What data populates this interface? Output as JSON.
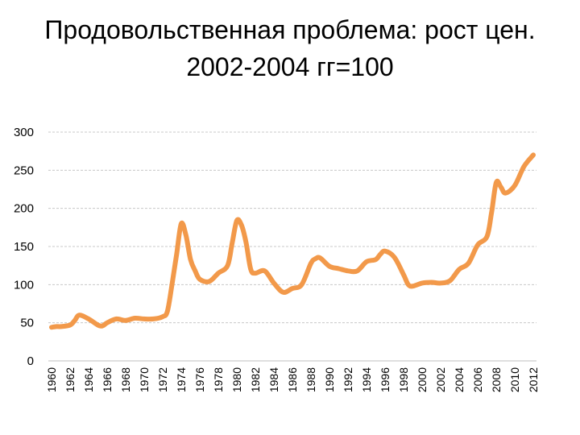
{
  "title_line1": "Продовольственная проблема: рост цен.",
  "title_line2": "2002-2004 гг=100",
  "chart_data": {
    "type": "line",
    "title": "Продовольственная проблема: рост цен. 2002-2004 гг=100",
    "xlabel": "",
    "ylabel": "",
    "ylim": [
      0,
      300
    ],
    "yticks": [
      "0",
      "50",
      "100",
      "150",
      "200",
      "250",
      "300"
    ],
    "xticks": [
      "1960",
      "1962",
      "1964",
      "1966",
      "1968",
      "1970",
      "1972",
      "1974",
      "1976",
      "1978",
      "1980",
      "1982",
      "1984",
      "1986",
      "1988",
      "1990",
      "1992",
      "1994",
      "1996",
      "1998",
      "2000",
      "2002",
      "2004",
      "2006",
      "2008",
      "2010",
      "2012"
    ],
    "grid": true,
    "legend": "none",
    "line_color": "#F2994A",
    "series": [
      {
        "x": [
          1960,
          1960.5,
          1961,
          1962,
          1962.5,
          1963,
          1964,
          1965,
          1965.5,
          1966,
          1967,
          1968,
          1969,
          1970,
          1971,
          1972,
          1972.5,
          1973,
          1973.5,
          1974,
          1974.5,
          1975,
          1975.5,
          1976,
          1977,
          1978,
          1979,
          1979.5,
          1980,
          1980.5,
          1981,
          1981.5,
          1982,
          1983,
          1984,
          1985,
          1986,
          1987,
          1988,
          1988.5,
          1989,
          1990,
          1991,
          1992,
          1993,
          1994,
          1995,
          1995.5,
          1996,
          1997,
          1998,
          1998.5,
          1999,
          2000,
          2001,
          2002,
          2003,
          2004,
          2005,
          2006,
          2007,
          2007.5,
          2008,
          2008.5,
          2009,
          2010,
          2011,
          2012
        ],
        "y": [
          44,
          45,
          45,
          47,
          53,
          60,
          55,
          47,
          46,
          50,
          55,
          53,
          56,
          55,
          55,
          58,
          65,
          100,
          140,
          180,
          165,
          133,
          118,
          107,
          104,
          115,
          125,
          155,
          184,
          178,
          155,
          120,
          115,
          118,
          102,
          90,
          95,
          100,
          128,
          134,
          135,
          124,
          121,
          118,
          118,
          130,
          133,
          140,
          144,
          136,
          113,
          100,
          98,
          102,
          103,
          102,
          105,
          120,
          128,
          152,
          163,
          195,
          234,
          228,
          220,
          230,
          255,
          270
        ]
      }
    ]
  }
}
